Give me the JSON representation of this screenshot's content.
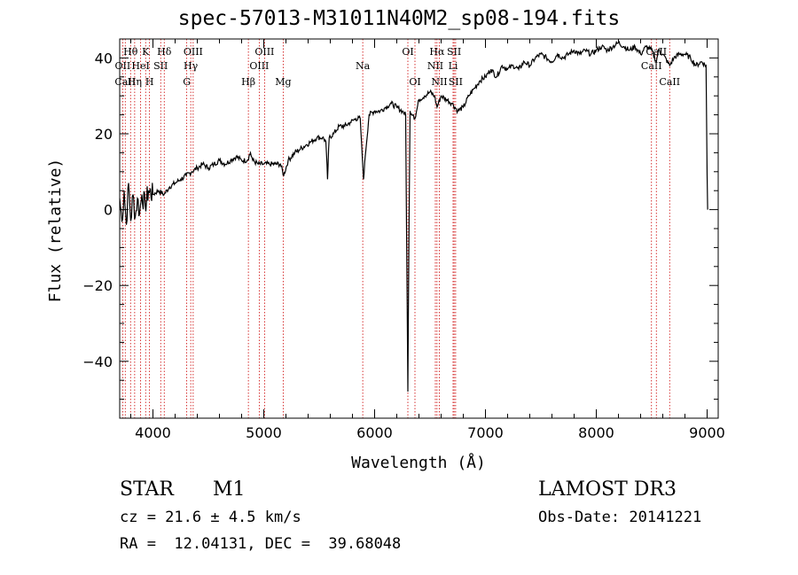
{
  "chart_data": {
    "type": "line",
    "title": "spec-57013-M31011N40M2_sp08-194.fits",
    "xlabel": "Wavelength (Å)",
    "ylabel": "Flux (relative)",
    "xlim": [
      3700,
      9100
    ],
    "ylim": [
      -55,
      45
    ],
    "xticks": [
      4000,
      5000,
      6000,
      7000,
      8000,
      9000
    ],
    "yticks": [
      -40,
      -20,
      0,
      20,
      40
    ],
    "grid": false,
    "line_color": "#000000",
    "marker_color": "#cc0000",
    "spectrum": {
      "name": "",
      "points": [
        [
          3700,
          3
        ],
        [
          3720,
          -3
        ],
        [
          3740,
          5
        ],
        [
          3760,
          -4
        ],
        [
          3780,
          7
        ],
        [
          3800,
          -3
        ],
        [
          3820,
          4
        ],
        [
          3840,
          -2
        ],
        [
          3860,
          3
        ],
        [
          3880,
          -1
        ],
        [
          3900,
          4
        ],
        [
          3930,
          1
        ],
        [
          3960,
          5
        ],
        [
          4000,
          4
        ],
        [
          4050,
          5
        ],
        [
          4100,
          4
        ],
        [
          4150,
          6
        ],
        [
          4200,
          7
        ],
        [
          4250,
          8
        ],
        [
          4300,
          9
        ],
        [
          4350,
          10
        ],
        [
          4400,
          11
        ],
        [
          4450,
          12
        ],
        [
          4500,
          11
        ],
        [
          4550,
          12
        ],
        [
          4600,
          13
        ],
        [
          4650,
          12
        ],
        [
          4700,
          13
        ],
        [
          4750,
          14
        ],
        [
          4800,
          13
        ],
        [
          4850,
          13
        ],
        [
          4880,
          15
        ],
        [
          4900,
          13
        ],
        [
          4950,
          12
        ],
        [
          5000,
          12
        ],
        [
          5050,
          12
        ],
        [
          5100,
          12
        ],
        [
          5150,
          12
        ],
        [
          5180,
          9
        ],
        [
          5220,
          13
        ],
        [
          5280,
          15
        ],
        [
          5330,
          16
        ],
        [
          5380,
          17
        ],
        [
          5430,
          18
        ],
        [
          5480,
          19
        ],
        [
          5530,
          19
        ],
        [
          5560,
          18
        ],
        [
          5575,
          8
        ],
        [
          5590,
          19
        ],
        [
          5630,
          20
        ],
        [
          5680,
          22
        ],
        [
          5730,
          22
        ],
        [
          5780,
          23
        ],
        [
          5830,
          24
        ],
        [
          5870,
          24
        ],
        [
          5890,
          13
        ],
        [
          5900,
          8
        ],
        [
          5915,
          14
        ],
        [
          5950,
          25
        ],
        [
          6000,
          26
        ],
        [
          6050,
          26
        ],
        [
          6100,
          27
        ],
        [
          6150,
          28
        ],
        [
          6200,
          27
        ],
        [
          6250,
          26
        ],
        [
          6280,
          25
        ],
        [
          6300,
          -48
        ],
        [
          6310,
          -5
        ],
        [
          6320,
          26
        ],
        [
          6350,
          25
        ],
        [
          6364,
          24
        ],
        [
          6400,
          29
        ],
        [
          6450,
          30
        ],
        [
          6500,
          31
        ],
        [
          6540,
          30
        ],
        [
          6563,
          27
        ],
        [
          6600,
          30
        ],
        [
          6650,
          29
        ],
        [
          6700,
          28
        ],
        [
          6750,
          26
        ],
        [
          6800,
          27
        ],
        [
          6850,
          30
        ],
        [
          6900,
          32
        ],
        [
          6950,
          34
        ],
        [
          7000,
          35
        ],
        [
          7050,
          37
        ],
        [
          7100,
          35
        ],
        [
          7150,
          38
        ],
        [
          7200,
          37
        ],
        [
          7250,
          38
        ],
        [
          7300,
          37
        ],
        [
          7350,
          39
        ],
        [
          7400,
          38
        ],
        [
          7450,
          40
        ],
        [
          7500,
          41
        ],
        [
          7550,
          40
        ],
        [
          7600,
          39
        ],
        [
          7650,
          41
        ],
        [
          7700,
          40
        ],
        [
          7750,
          41
        ],
        [
          7800,
          42
        ],
        [
          7850,
          41
        ],
        [
          7900,
          42
        ],
        [
          7950,
          41
        ],
        [
          8000,
          42
        ],
        [
          8050,
          43
        ],
        [
          8100,
          42
        ],
        [
          8150,
          43
        ],
        [
          8200,
          44
        ],
        [
          8250,
          43
        ],
        [
          8300,
          42
        ],
        [
          8350,
          43
        ],
        [
          8400,
          41
        ],
        [
          8450,
          43
        ],
        [
          8500,
          42
        ],
        [
          8542,
          39
        ],
        [
          8560,
          42
        ],
        [
          8600,
          41
        ],
        [
          8662,
          38
        ],
        [
          8700,
          40
        ],
        [
          8750,
          41
        ],
        [
          8800,
          41
        ],
        [
          8850,
          40
        ],
        [
          8900,
          38
        ],
        [
          8950,
          39
        ],
        [
          8990,
          38
        ],
        [
          9000,
          9
        ],
        [
          9005,
          0
        ]
      ]
    },
    "lines": [
      {
        "label": "Hθ",
        "wl": 3798,
        "row": 1
      },
      {
        "label": "OII",
        "wl": 3727,
        "row": 2
      },
      {
        "label": "CaII",
        "wl": 3750,
        "row": 3
      },
      {
        "label": "Hη",
        "wl": 3835,
        "row": 3
      },
      {
        "label": "HeI",
        "wl": 3889,
        "row": 2
      },
      {
        "label": "K",
        "wl": 3934,
        "row": 1
      },
      {
        "label": "H",
        "wl": 3969,
        "row": 3
      },
      {
        "label": "SII",
        "wl": 4070,
        "row": 2
      },
      {
        "label": "Hδ",
        "wl": 4102,
        "row": 1
      },
      {
        "label": "OIII",
        "wl": 4363,
        "row": 1
      },
      {
        "label": "Hγ",
        "wl": 4341,
        "row": 2
      },
      {
        "label": "G",
        "wl": 4305,
        "row": 3
      },
      {
        "label": "Hβ",
        "wl": 4861,
        "row": 3
      },
      {
        "label": "OIII",
        "wl": 5007,
        "row": 1
      },
      {
        "label": "OIII",
        "wl": 4959,
        "row": 2
      },
      {
        "label": "Mg",
        "wl": 5175,
        "row": 3
      },
      {
        "label": "Na",
        "wl": 5893,
        "row": 2
      },
      {
        "label": "OI",
        "wl": 6300,
        "row": 1
      },
      {
        "label": "OI",
        "wl": 6364,
        "row": 3
      },
      {
        "label": "Hα",
        "wl": 6563,
        "row": 1
      },
      {
        "label": "NII",
        "wl": 6548,
        "row": 2
      },
      {
        "label": "NII",
        "wl": 6584,
        "row": 3
      },
      {
        "label": "SII",
        "wl": 6717,
        "row": 1
      },
      {
        "label": "Li",
        "wl": 6708,
        "row": 2
      },
      {
        "label": "SII",
        "wl": 6731,
        "row": 3
      },
      {
        "label": "CaII",
        "wl": 8542,
        "row": 1
      },
      {
        "label": "CaII",
        "wl": 8498,
        "row": 2
      },
      {
        "label": "CaII",
        "wl": 8662,
        "row": 3
      }
    ]
  },
  "info": {
    "class": "STAR",
    "subclass": "M1",
    "survey": "LAMOST DR3",
    "cz": "cz = 21.6 ± 4.5 km/s",
    "obs_date": "Obs-Date: 20141221",
    "coords": "RA =  12.04131, DEC =  39.68048"
  }
}
